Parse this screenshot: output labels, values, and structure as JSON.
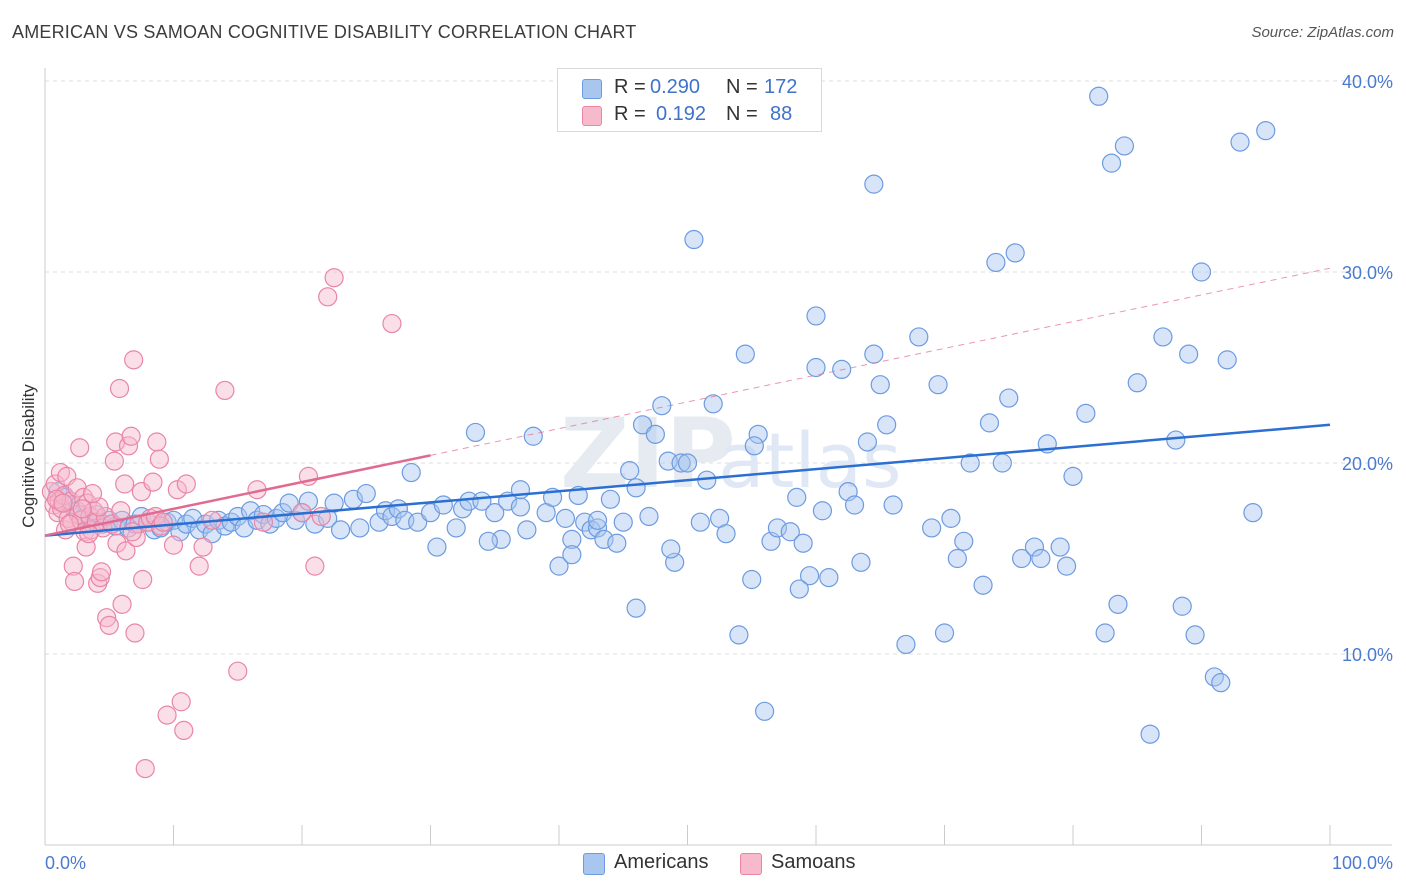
{
  "title": "AMERICAN VS SAMOAN COGNITIVE DISABILITY CORRELATION CHART",
  "source": "Source: ZipAtlas.com",
  "watermark": "ZIPatlas",
  "legend": {
    "rows": [
      {
        "r_label": "R =",
        "r_value": "0.290",
        "n_label": "N =",
        "n_value": "172",
        "color": "#a9c6ef",
        "border": "#6d9be0"
      },
      {
        "r_label": "R =",
        "r_value": "0.192",
        "n_label": "N =",
        "n_value": "88",
        "color": "#f7b9cc",
        "border": "#e985a6"
      }
    ]
  },
  "bottom_legend": [
    {
      "label": "Americans",
      "color": "#a9c6ef",
      "border": "#6d9be0"
    },
    {
      "label": "Samoans",
      "color": "#f7b9cc",
      "border": "#e985a6"
    }
  ],
  "chart_data": {
    "type": "scatter",
    "title": "AMERICAN VS SAMOAN COGNITIVE DISABILITY CORRELATION CHART",
    "xlabel": "",
    "ylabel": "Cognitive Disability",
    "xlim": [
      0,
      100
    ],
    "ylim": [
      0,
      42
    ],
    "x_tick_labels": [
      "0.0%",
      "100.0%"
    ],
    "y_ticks": [
      10,
      20,
      30,
      40
    ],
    "y_tick_labels": [
      "10.0%",
      "20.0%",
      "30.0%",
      "40.0%"
    ],
    "grid": true,
    "series": [
      {
        "name": "Americans",
        "color": "#6d9be0",
        "fill": "#a9c6ef",
        "trend": {
          "x": [
            0,
            100
          ],
          "y": [
            16.2,
            22.0
          ],
          "dashed_after": null,
          "color": "#2a6fd1"
        },
        "points": [
          [
            1,
            18.5
          ],
          [
            1.5,
            18.2
          ],
          [
            2,
            17.8
          ],
          [
            2.5,
            17.5
          ],
          [
            3,
            17.1
          ],
          [
            3.5,
            16.9
          ],
          [
            4,
            17.3
          ],
          [
            4.5,
            16.8
          ],
          [
            5,
            17.0
          ],
          [
            5.5,
            16.7
          ],
          [
            6,
            17.0
          ],
          [
            6.5,
            16.6
          ],
          [
            7,
            16.8
          ],
          [
            7.5,
            17.2
          ],
          [
            8,
            16.9
          ],
          [
            8.5,
            16.5
          ],
          [
            9,
            16.6
          ],
          [
            9.5,
            16.9
          ],
          [
            10,
            17.0
          ],
          [
            10.5,
            16.4
          ],
          [
            11,
            16.8
          ],
          [
            11.5,
            17.1
          ],
          [
            12,
            16.5
          ],
          [
            12.5,
            16.8
          ],
          [
            13,
            16.3
          ],
          [
            13.5,
            17.0
          ],
          [
            14,
            16.7
          ],
          [
            14.5,
            16.9
          ],
          [
            15,
            17.2
          ],
          [
            15.5,
            16.6
          ],
          [
            16,
            17.5
          ],
          [
            16.5,
            17.0
          ],
          [
            17,
            17.3
          ],
          [
            17.5,
            16.8
          ],
          [
            18,
            17.1
          ],
          [
            18.5,
            17.4
          ],
          [
            19,
            17.9
          ],
          [
            19.5,
            17.0
          ],
          [
            20,
            17.4
          ],
          [
            20.5,
            18.0
          ],
          [
            21,
            16.8
          ],
          [
            22,
            17.1
          ],
          [
            22.5,
            17.9
          ],
          [
            23,
            16.5
          ],
          [
            24,
            18.1
          ],
          [
            24.5,
            16.6
          ],
          [
            25,
            18.4
          ],
          [
            26,
            16.9
          ],
          [
            26.5,
            17.5
          ],
          [
            27,
            17.2
          ],
          [
            27.5,
            17.6
          ],
          [
            28,
            17.0
          ],
          [
            28.5,
            19.5
          ],
          [
            29,
            16.9
          ],
          [
            30,
            17.4
          ],
          [
            30.5,
            15.6
          ],
          [
            31,
            17.8
          ],
          [
            32,
            16.6
          ],
          [
            32.5,
            17.6
          ],
          [
            33,
            18.0
          ],
          [
            33.5,
            21.6
          ],
          [
            34,
            18.0
          ],
          [
            35,
            17.4
          ],
          [
            35.5,
            16.0
          ],
          [
            36,
            18.0
          ],
          [
            37,
            17.7
          ],
          [
            37.5,
            16.5
          ],
          [
            38,
            21.4
          ],
          [
            39,
            17.4
          ],
          [
            39.5,
            18.2
          ],
          [
            40,
            14.6
          ],
          [
            40.5,
            17.1
          ],
          [
            41,
            16.0
          ],
          [
            41.5,
            18.3
          ],
          [
            42,
            16.9
          ],
          [
            42.5,
            16.5
          ],
          [
            43,
            16.6
          ],
          [
            43.5,
            16.0
          ],
          [
            44,
            18.1
          ],
          [
            44.5,
            15.8
          ],
          [
            45,
            16.9
          ],
          [
            45.5,
            19.6
          ],
          [
            46,
            12.4
          ],
          [
            46.5,
            22.0
          ],
          [
            47,
            17.2
          ],
          [
            47.5,
            21.5
          ],
          [
            48,
            23.0
          ],
          [
            48.5,
            20.1
          ],
          [
            49,
            14.8
          ],
          [
            49.5,
            20.0
          ],
          [
            50,
            20.0
          ],
          [
            51,
            16.9
          ],
          [
            51.5,
            19.1
          ],
          [
            52,
            23.1
          ],
          [
            52.5,
            17.1
          ],
          [
            53,
            16.3
          ],
          [
            54,
            11.0
          ],
          [
            54.5,
            25.7
          ],
          [
            55,
            13.9
          ],
          [
            55.5,
            21.5
          ],
          [
            56,
            7.0
          ],
          [
            56.5,
            15.9
          ],
          [
            57,
            16.6
          ],
          [
            58,
            16.4
          ],
          [
            58.5,
            18.2
          ],
          [
            59,
            15.8
          ],
          [
            59.5,
            14.1
          ],
          [
            60,
            25.0
          ],
          [
            60.5,
            17.5
          ],
          [
            61,
            14.0
          ],
          [
            62,
            24.9
          ],
          [
            62.5,
            18.5
          ],
          [
            63,
            17.8
          ],
          [
            63.5,
            14.8
          ],
          [
            64,
            21.1
          ],
          [
            64.5,
            25.7
          ],
          [
            65,
            24.1
          ],
          [
            65.5,
            22.0
          ],
          [
            66,
            17.8
          ],
          [
            67,
            10.5
          ],
          [
            68,
            26.6
          ],
          [
            69,
            16.6
          ],
          [
            69.5,
            24.1
          ],
          [
            70,
            11.1
          ],
          [
            70.5,
            17.1
          ],
          [
            71,
            15.0
          ],
          [
            71.5,
            15.9
          ],
          [
            72,
            20.0
          ],
          [
            73,
            13.6
          ],
          [
            73.5,
            22.1
          ],
          [
            74,
            30.5
          ],
          [
            74.5,
            20.0
          ],
          [
            75,
            23.4
          ],
          [
            75.5,
            31.0
          ],
          [
            76,
            15.0
          ],
          [
            77,
            15.6
          ],
          [
            77.5,
            15.0
          ],
          [
            78,
            21.0
          ],
          [
            79,
            15.6
          ],
          [
            79.5,
            14.6
          ],
          [
            80,
            19.3
          ],
          [
            81,
            22.6
          ],
          [
            82,
            39.2
          ],
          [
            82.5,
            11.1
          ],
          [
            83,
            35.7
          ],
          [
            83.5,
            12.6
          ],
          [
            84,
            36.6
          ],
          [
            85,
            24.2
          ],
          [
            86,
            5.8
          ],
          [
            87,
            26.6
          ],
          [
            88,
            21.2
          ],
          [
            88.5,
            12.5
          ],
          [
            89,
            25.7
          ],
          [
            89.5,
            11.0
          ],
          [
            90,
            30.0
          ],
          [
            91,
            8.8
          ],
          [
            91.5,
            8.5
          ],
          [
            92,
            25.4
          ],
          [
            93,
            36.8
          ],
          [
            94,
            17.4
          ],
          [
            95,
            37.4
          ],
          [
            64.5,
            34.6
          ],
          [
            50.5,
            31.7
          ],
          [
            60,
            27.7
          ],
          [
            43,
            17.0
          ],
          [
            46,
            18.7
          ],
          [
            34.5,
            15.9
          ],
          [
            37,
            18.6
          ],
          [
            48.7,
            15.5
          ],
          [
            41,
            15.2
          ],
          [
            55.2,
            20.9
          ],
          [
            58.7,
            13.4
          ]
        ]
      },
      {
        "name": "Samoans",
        "color": "#e985a6",
        "fill": "#f7b9cc",
        "trend": {
          "x": [
            0,
            30
          ],
          "y": [
            16.2,
            20.4
          ],
          "dashed_to": [
            100,
            30.2
          ],
          "color": "#e06a92"
        },
        "points": [
          [
            0.5,
            18.5
          ],
          [
            0.7,
            17.8
          ],
          [
            0.8,
            18.9
          ],
          [
            1,
            17.4
          ],
          [
            1.1,
            18.0
          ],
          [
            1.2,
            19.5
          ],
          [
            1.3,
            17.6
          ],
          [
            1.5,
            18.3
          ],
          [
            1.6,
            16.5
          ],
          [
            1.7,
            19.3
          ],
          [
            1.8,
            17.1
          ],
          [
            2,
            18.0
          ],
          [
            2.1,
            16.9
          ],
          [
            2.2,
            14.6
          ],
          [
            2.3,
            13.8
          ],
          [
            2.5,
            18.7
          ],
          [
            2.6,
            17.3
          ],
          [
            2.7,
            20.8
          ],
          [
            2.8,
            17.0
          ],
          [
            3,
            18.2
          ],
          [
            3.1,
            16.4
          ],
          [
            3.2,
            15.6
          ],
          [
            3.3,
            17.9
          ],
          [
            3.5,
            17.2
          ],
          [
            3.6,
            16.5
          ],
          [
            3.8,
            17.5
          ],
          [
            4,
            16.9
          ],
          [
            4.1,
            13.7
          ],
          [
            4.3,
            14.0
          ],
          [
            4.4,
            14.3
          ],
          [
            4.5,
            16.6
          ],
          [
            4.7,
            17.2
          ],
          [
            4.8,
            11.9
          ],
          [
            5,
            11.5
          ],
          [
            5.2,
            16.8
          ],
          [
            5.4,
            20.1
          ],
          [
            5.5,
            21.1
          ],
          [
            5.6,
            15.8
          ],
          [
            5.8,
            23.9
          ],
          [
            6,
            12.6
          ],
          [
            6.2,
            18.9
          ],
          [
            6.3,
            15.4
          ],
          [
            6.5,
            20.9
          ],
          [
            6.7,
            21.4
          ],
          [
            6.9,
            25.4
          ],
          [
            7,
            11.1
          ],
          [
            7.1,
            16.1
          ],
          [
            7.3,
            16.8
          ],
          [
            7.5,
            18.5
          ],
          [
            7.6,
            13.9
          ],
          [
            7.8,
            4.0
          ],
          [
            8,
            16.9
          ],
          [
            8.2,
            17.1
          ],
          [
            8.4,
            19.0
          ],
          [
            8.6,
            17.2
          ],
          [
            8.7,
            21.1
          ],
          [
            8.9,
            20.2
          ],
          [
            9,
            16.7
          ],
          [
            9.5,
            6.8
          ],
          [
            10,
            15.7
          ],
          [
            10.3,
            18.6
          ],
          [
            10.6,
            7.5
          ],
          [
            10.8,
            6.0
          ],
          [
            11,
            18.9
          ],
          [
            12,
            14.6
          ],
          [
            12.3,
            15.6
          ],
          [
            13,
            17.0
          ],
          [
            14,
            23.8
          ],
          [
            15,
            9.1
          ],
          [
            16.5,
            18.6
          ],
          [
            17,
            16.9
          ],
          [
            20,
            17.4
          ],
          [
            20.5,
            19.3
          ],
          [
            21,
            14.6
          ],
          [
            21.5,
            17.2
          ],
          [
            22,
            28.7
          ],
          [
            22.5,
            29.7
          ],
          [
            27,
            27.3
          ],
          [
            4.2,
            17.7
          ],
          [
            3.4,
            16.3
          ],
          [
            2.9,
            17.6
          ],
          [
            1.9,
            16.8
          ],
          [
            0.9,
            18.1
          ],
          [
            6.8,
            16.4
          ],
          [
            9.2,
            16.9
          ],
          [
            5.9,
            17.5
          ],
          [
            3.7,
            18.4
          ],
          [
            1.4,
            17.9
          ]
        ]
      }
    ]
  }
}
